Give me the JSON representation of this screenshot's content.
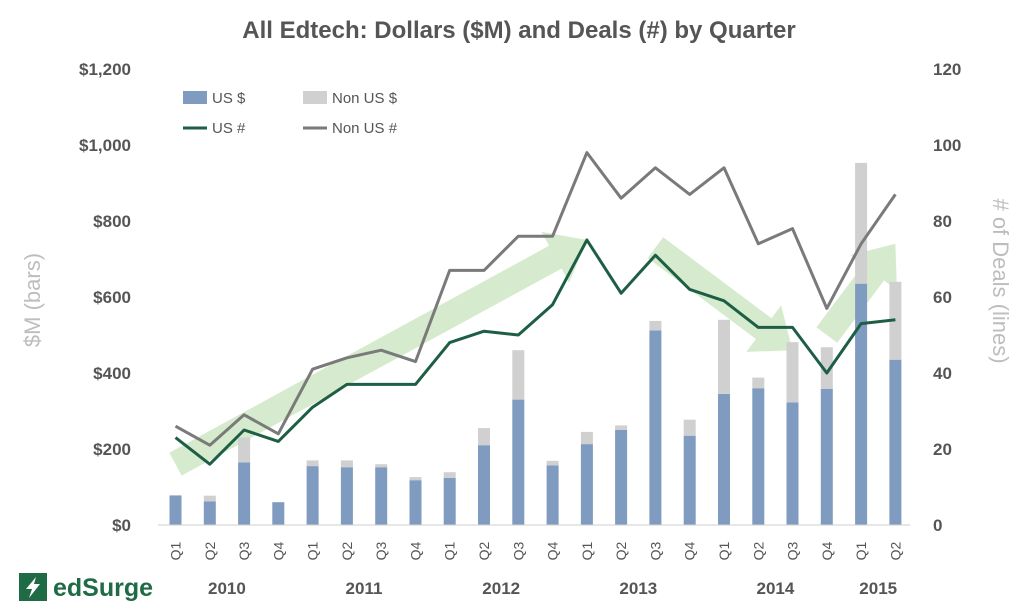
{
  "chart_data": {
    "type": "bar",
    "title": "All Edtech: Dollars ($M) and Deals (#) by Quarter",
    "ylabel_left": "$M (bars)",
    "ylabel_right": "# of Deals (lines)",
    "ylim_left": [
      0,
      1200
    ],
    "ylim_right": [
      0,
      120
    ],
    "left_ticks": [
      "$0",
      "$200",
      "$400",
      "$600",
      "$800",
      "$1,000",
      "$1,200"
    ],
    "right_ticks": [
      "0",
      "20",
      "40",
      "60",
      "80",
      "100",
      "120"
    ],
    "categories": [
      "Q1",
      "Q2",
      "Q3",
      "Q4",
      "Q1",
      "Q2",
      "Q3",
      "Q4",
      "Q1",
      "Q2",
      "Q3",
      "Q4",
      "Q1",
      "Q2",
      "Q3",
      "Q4",
      "Q1",
      "Q2",
      "Q3",
      "Q4",
      "Q1",
      "Q2"
    ],
    "years": [
      {
        "label": "2010",
        "first": 0,
        "last": 3
      },
      {
        "label": "2011",
        "first": 4,
        "last": 7
      },
      {
        "label": "2012",
        "first": 8,
        "last": 11
      },
      {
        "label": "2013",
        "first": 12,
        "last": 15
      },
      {
        "label": "2014",
        "first": 16,
        "last": 19
      },
      {
        "label": "2015",
        "first": 20,
        "last": 21
      }
    ],
    "series": [
      {
        "name": "US $",
        "kind": "bar",
        "axis": "left",
        "color": "#7f9bbf",
        "values": [
          78,
          62,
          165,
          60,
          155,
          152,
          152,
          118,
          124,
          210,
          330,
          157,
          213,
          250,
          512,
          235,
          345,
          360,
          323,
          358,
          635,
          435
        ]
      },
      {
        "name": "Non US $",
        "kind": "bar",
        "axis": "left",
        "color": "#d0d0d0",
        "values": [
          0,
          15,
          65,
          0,
          15,
          18,
          8,
          8,
          15,
          45,
          130,
          12,
          32,
          12,
          25,
          42,
          195,
          28,
          158,
          110,
          318,
          205
        ]
      },
      {
        "name": "US #",
        "kind": "line",
        "axis": "right",
        "color": "#1e5e45",
        "values": [
          23,
          16,
          25,
          22,
          31,
          37,
          37,
          37,
          48,
          51,
          50,
          58,
          75,
          61,
          71,
          62,
          59,
          52,
          52,
          40,
          53,
          54
        ]
      },
      {
        "name": "Non US #",
        "kind": "line",
        "axis": "right",
        "color": "#7a7a7a",
        "values": [
          26,
          21,
          29,
          24,
          41,
          44,
          46,
          43,
          67,
          67,
          76,
          76,
          98,
          86,
          94,
          87,
          94,
          74,
          78,
          57,
          74,
          87
        ]
      }
    ],
    "trend_arrows": [
      {
        "from": [
          0,
          16
        ],
        "to": [
          12,
          75
        ]
      },
      {
        "from": [
          14,
          73
        ],
        "to": [
          18,
          46
        ]
      },
      {
        "from": [
          19,
          50
        ],
        "to": [
          21,
          74
        ]
      }
    ],
    "legend_position": "top-left",
    "grid": false
  },
  "branding": {
    "logo_text": "edSurge",
    "logo_color": "#1f6b45",
    "arrow_color": "#cfe8c4"
  }
}
